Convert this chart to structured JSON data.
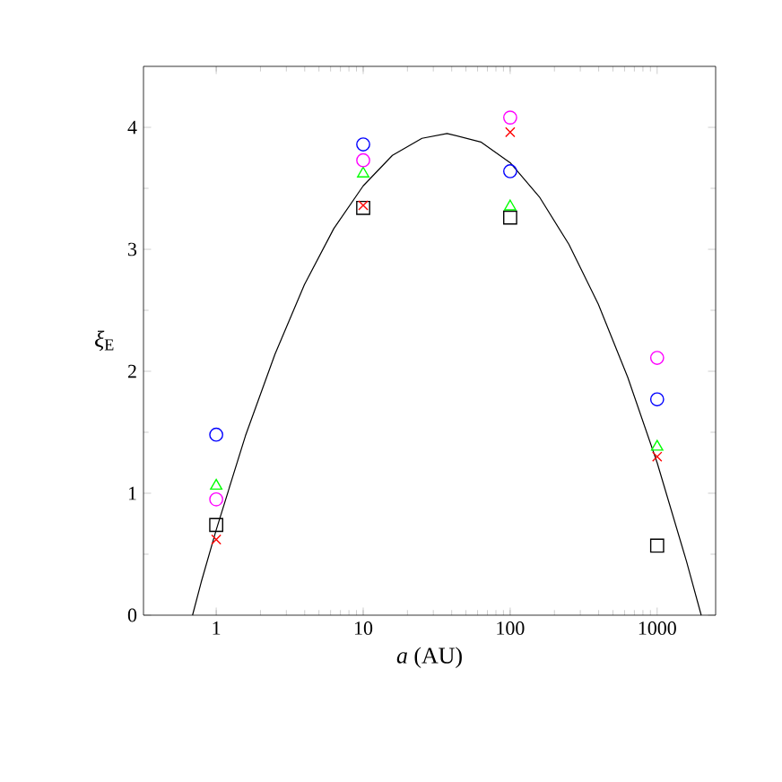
{
  "chart_data": {
    "type": "scatter",
    "xlabel": "*a* (AU)",
    "ylabel": "*ξ*$_{E}$",
    "log": "x",
    "xlim": [
      0.32,
      2500
    ],
    "ylim": [
      0,
      4.5
    ],
    "xticks": [
      1,
      10,
      100,
      1000
    ],
    "yticks": [
      0,
      1,
      2,
      3,
      4
    ],
    "grid": false,
    "series": [
      {
        "color": "#000000",
        "marker": "square",
        "x": [
          1,
          10,
          100,
          1000
        ],
        "values": [
          0.74,
          3.34,
          3.26,
          0.57
        ]
      },
      {
        "color": "#ff0000",
        "marker": "cross",
        "x": [
          1,
          10,
          100,
          1000
        ],
        "values": [
          0.62,
          3.36,
          3.96,
          1.3
        ]
      },
      {
        "color": "#00ff00",
        "marker": "triangle",
        "x": [
          1,
          10,
          100,
          1000
        ],
        "values": [
          1.06,
          3.62,
          3.35,
          1.38
        ]
      },
      {
        "color": "#ff00ff",
        "marker": "circle",
        "x": [
          1,
          10,
          100,
          1000
        ],
        "values": [
          0.95,
          3.73,
          4.08,
          2.11
        ]
      },
      {
        "color": "#0000ff",
        "marker": "circle",
        "x": [
          1,
          10,
          100,
          1000
        ],
        "values": [
          1.48,
          3.86,
          3.64,
          1.77
        ]
      },
      {
        "type": "line",
        "color": "#000000",
        "marker": "none",
        "line_style": "solid",
        "x": [
          0.69,
          0.79,
          1,
          1.58,
          2.51,
          3.98,
          6.31,
          10,
          15.8,
          25.1,
          37.2,
          63.1,
          100,
          158,
          251,
          398,
          631,
          1000,
          1585,
          1995
        ],
        "values": [
          0,
          0.27,
          0.7,
          1.47,
          2.14,
          2.71,
          3.17,
          3.52,
          3.77,
          3.91,
          3.95,
          3.88,
          3.71,
          3.43,
          3.04,
          2.55,
          1.95,
          1.25,
          0.44,
          0
        ]
      }
    ]
  }
}
